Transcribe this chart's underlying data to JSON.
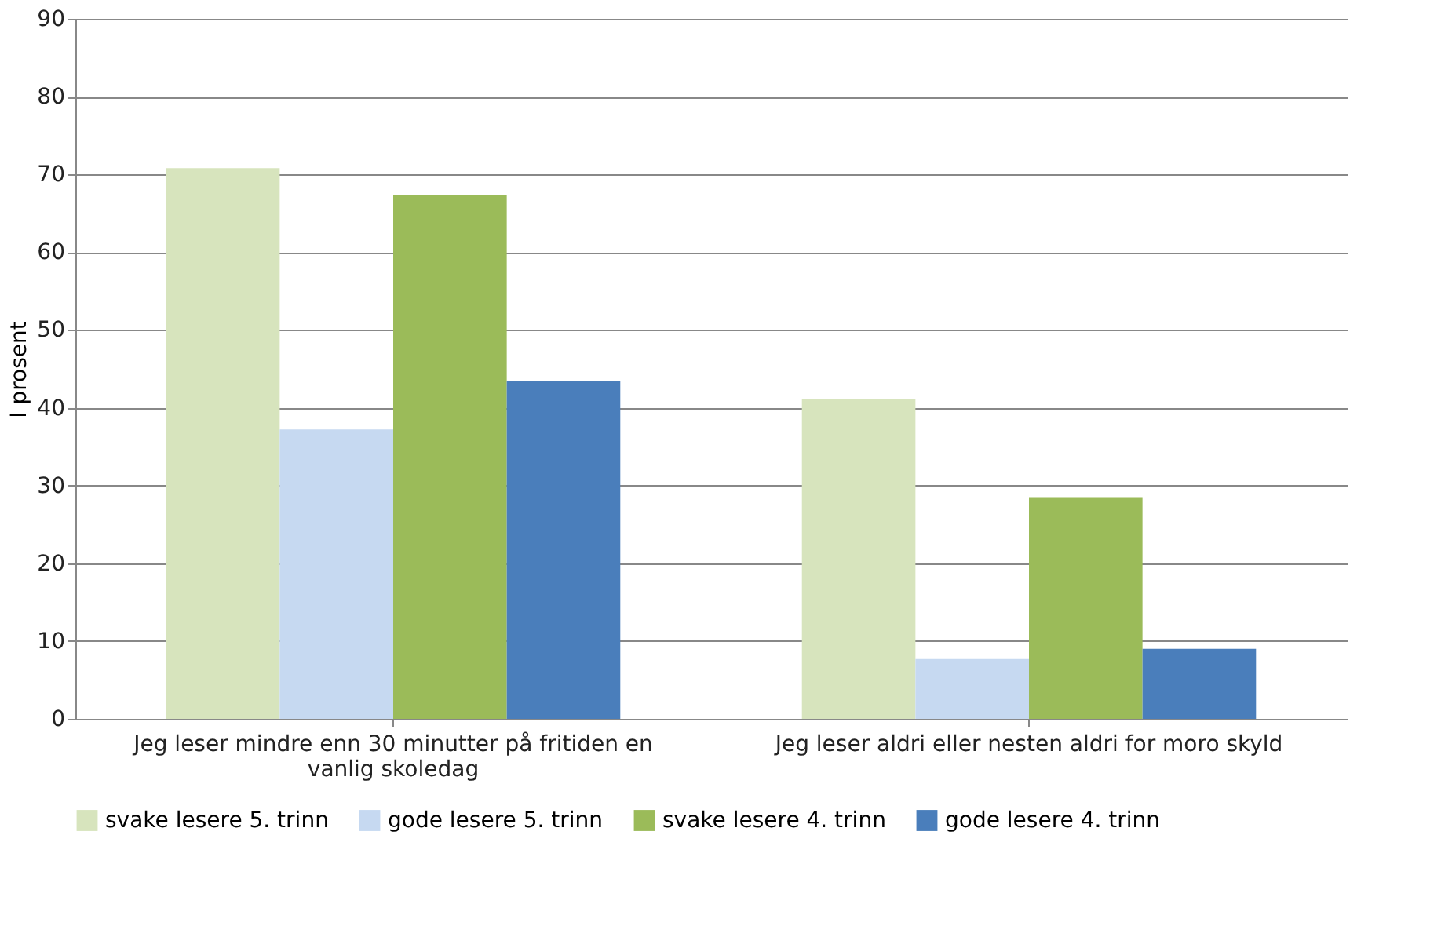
{
  "chart_data": {
    "type": "bar",
    "ylabel": "I prosent",
    "categories": [
      "Jeg leser mindre enn 30 minutter på fritiden en vanlig skoledag",
      "Jeg leser aldri eller nesten aldri for moro skyld"
    ],
    "series": [
      {
        "name": "svake lesere 5. trinn",
        "color": "#d7e4bd",
        "values": [
          70.8,
          41.1
        ]
      },
      {
        "name": "gode lesere 5. trinn",
        "color": "#c6d9f1",
        "values": [
          37.2,
          7.7
        ]
      },
      {
        "name": "svake lesere 4. trinn",
        "color": "#9bbb59",
        "values": [
          67.4,
          28.5
        ]
      },
      {
        "name": "gode lesere 4. trinn",
        "color": "#4a7ebb",
        "values": [
          43.4,
          9.0
        ]
      }
    ],
    "ylim": [
      0,
      90
    ],
    "yticks": [
      0,
      10,
      20,
      30,
      40,
      50,
      60,
      70,
      80,
      90
    ],
    "grid": "y",
    "legend": "bottom"
  }
}
